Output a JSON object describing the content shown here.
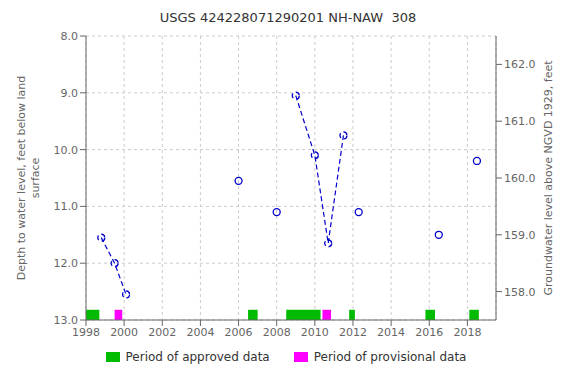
{
  "chart_data": {
    "type": "line",
    "title": "USGS 424228071290201 NH-NAW  308",
    "y_label": "Depth to water level, feet below land\n surface",
    "y2_label": "Groundwater level above NGVD 1929, feet",
    "series": [
      {
        "x": [
          1998.8,
          1999.5,
          2000.1
        ],
        "values": [
          11.55,
          12.0,
          12.55
        ],
        "color": "#0000cc",
        "line_style": "dashed",
        "marker": "circle"
      },
      {
        "x": [
          2009.0,
          2010.0,
          2010.7,
          2011.5
        ],
        "values": [
          9.05,
          10.1,
          11.65,
          9.75
        ],
        "color": "#0000cc",
        "line_style": "dashed",
        "marker": "circle"
      },
      {
        "x": [
          2006.0,
          2008.0,
          2012.3,
          2016.5,
          2018.5
        ],
        "values": [
          10.55,
          11.1,
          11.1,
          11.5,
          10.2
        ],
        "color": "#0000cc",
        "line_style": "none",
        "marker": "circle"
      }
    ],
    "periods": [
      {
        "name": "Period of approved data",
        "color": "#00bb00",
        "y": [
          12.82,
          13.0
        ],
        "ranges": [
          [
            1998.0,
            1998.7
          ],
          [
            2006.5,
            2007.0
          ],
          [
            2008.5,
            2010.3
          ],
          [
            2011.8,
            2012.1
          ],
          [
            2015.8,
            2016.3
          ],
          [
            2018.1,
            2018.6
          ]
        ]
      },
      {
        "name": "Period of provisional data",
        "color": "#ff00ff",
        "y": [
          12.82,
          13.0
        ],
        "ranges": [
          [
            1999.5,
            1999.9
          ],
          [
            2010.4,
            2010.85
          ]
        ]
      }
    ],
    "xlim": [
      1998,
      2019.5
    ],
    "xticks": [
      1998,
      2000,
      2002,
      2004,
      2006,
      2008,
      2010,
      2012,
      2014,
      2016,
      2018
    ],
    "ylim": [
      13.0,
      8.0
    ],
    "yticks": [
      {
        "value": 8.0,
        "label": "8.0"
      },
      {
        "value": 9.0,
        "label": "9.0"
      },
      {
        "value": 10.0,
        "label": "10.0"
      },
      {
        "value": 11.0,
        "label": "11.0"
      },
      {
        "value": 12.0,
        "label": "12.0"
      },
      {
        "value": 13.0,
        "label": "13.0"
      }
    ],
    "y2lim": [
      157.5,
      162.5
    ],
    "y2ticks": [
      {
        "value": 158.0,
        "label": "158.0"
      },
      {
        "value": 159.0,
        "label": "159.0"
      },
      {
        "value": 160.0,
        "label": "160.0"
      },
      {
        "value": 161.0,
        "label": "161.0"
      },
      {
        "value": 162.0,
        "label": "162.0"
      }
    ],
    "grid": true,
    "legend": "bottom"
  }
}
